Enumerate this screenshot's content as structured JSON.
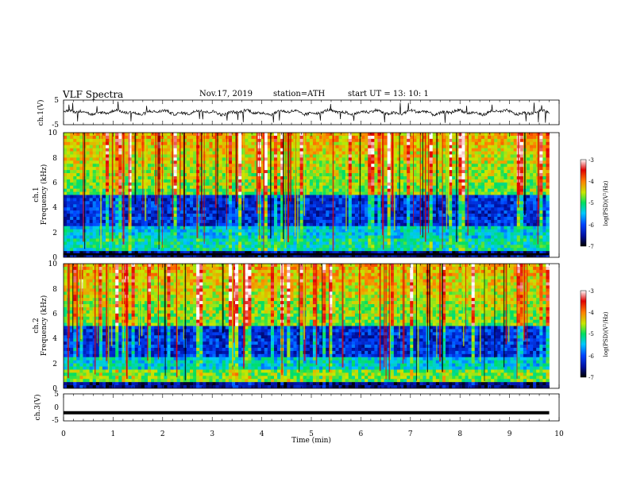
{
  "header": {
    "title": "VLF  Spectra",
    "date": "Nov.17, 2019",
    "station": "station=ATH",
    "start": "start  UT  =   13: 10: 1"
  },
  "chart_data": [
    {
      "id": "ch1-waveform",
      "type": "line",
      "ylabel": "ch.1(V)",
      "ylim": [
        -5,
        5
      ],
      "yticks": [
        "5",
        "-5"
      ],
      "xlim": [
        0,
        10
      ],
      "description_series": "broadband waveform trace near 0 V with sferic spikes"
    },
    {
      "id": "ch1-spectrogram",
      "type": "heatmap",
      "ylabel": "ch.1\nFrequency (kHz)",
      "ylim": [
        0,
        10
      ],
      "yticks": [
        "0",
        "2",
        "4",
        "6",
        "8",
        "10"
      ],
      "xlim": [
        0,
        10
      ],
      "data_xmax": 9.8,
      "colorbar": {
        "label": "log(PSD)(V²/Hz)",
        "range": [
          -7,
          -3
        ],
        "ticks": [
          "-3",
          "-4",
          "-5",
          "-6",
          "-7"
        ]
      }
    },
    {
      "id": "ch2-spectrogram",
      "type": "heatmap",
      "ylabel": "ch.2\nFrequency (kHz)",
      "ylim": [
        0,
        10
      ],
      "yticks": [
        "0",
        "2",
        "4",
        "6",
        "8",
        "10"
      ],
      "xlim": [
        0,
        10
      ],
      "data_xmax": 9.8,
      "colorbar": {
        "label": "log(PSD)(V²/Hz)",
        "range": [
          -7,
          -3
        ],
        "ticks": [
          "-3",
          "-4",
          "-5",
          "-6",
          "-7"
        ]
      }
    },
    {
      "id": "ch3-waveform",
      "type": "line",
      "ylabel": "ch.3(V)",
      "ylim": [
        -5,
        5
      ],
      "yticks": [
        "5",
        "0",
        "-5"
      ],
      "xlim": [
        0,
        10
      ],
      "level": -2
    }
  ],
  "xaxis": {
    "label": "Time  (min)",
    "ticks": [
      "0",
      "1",
      "2",
      "3",
      "4",
      "5",
      "6",
      "7",
      "8",
      "9",
      "10"
    ]
  },
  "colors": {
    "colormap": [
      "#000000",
      "#0010a0",
      "#0044ff",
      "#00c8ff",
      "#00e060",
      "#c8e800",
      "#ff8000",
      "#e00000",
      "#ffffff"
    ]
  }
}
